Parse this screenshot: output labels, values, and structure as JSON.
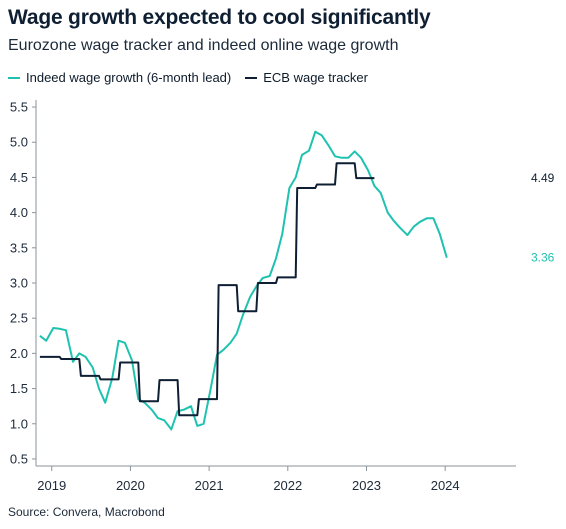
{
  "header": {
    "title": "Wage growth expected to cool significantly",
    "subtitle": "Eurozone wage tracker and indeed online wage growth"
  },
  "footer": {
    "source": "Source: Convera, Macrobond"
  },
  "colors": {
    "indeed": "#1fc2b0",
    "ecb": "#0f1f33"
  },
  "chart_data": {
    "type": "line",
    "title": "Wage growth expected to cool significantly",
    "subtitle": "Eurozone wage tracker and indeed online wage growth",
    "xlabel": "",
    "ylabel": "",
    "ylim": [
      0.4,
      5.6
    ],
    "yticks": [
      "0.5",
      "1.0",
      "1.5",
      "2.0",
      "2.5",
      "3.0",
      "3.5",
      "4.0",
      "4.5",
      "5.0",
      "5.5"
    ],
    "xlim": [
      2018.8,
      2024.9
    ],
    "xticks": [
      {
        "label": "2019",
        "value": 2019
      },
      {
        "label": "2020",
        "value": 2020
      },
      {
        "label": "2021",
        "value": 2021
      },
      {
        "label": "2022",
        "value": 2022
      },
      {
        "label": "2023",
        "value": 2023
      },
      {
        "label": "2024",
        "value": 2024
      }
    ],
    "grid": false,
    "legend_position": "top-left",
    "series": [
      {
        "name": "Indeed wage growth (6-month lead)",
        "end_label": "3.36",
        "points": [
          [
            2018.85,
            2.25
          ],
          [
            2018.93,
            2.18
          ],
          [
            2019.02,
            2.36
          ],
          [
            2019.1,
            2.35
          ],
          [
            2019.18,
            2.33
          ],
          [
            2019.27,
            1.88
          ],
          [
            2019.35,
            2.0
          ],
          [
            2019.43,
            1.95
          ],
          [
            2019.52,
            1.8
          ],
          [
            2019.6,
            1.5
          ],
          [
            2019.68,
            1.3
          ],
          [
            2019.77,
            1.65
          ],
          [
            2019.85,
            2.18
          ],
          [
            2019.93,
            2.15
          ],
          [
            2020.02,
            1.9
          ],
          [
            2020.1,
            1.35
          ],
          [
            2020.18,
            1.3
          ],
          [
            2020.27,
            1.2
          ],
          [
            2020.35,
            1.08
          ],
          [
            2020.43,
            1.05
          ],
          [
            2020.52,
            0.92
          ],
          [
            2020.6,
            1.18
          ],
          [
            2020.68,
            1.2
          ],
          [
            2020.77,
            1.25
          ],
          [
            2020.85,
            0.97
          ],
          [
            2020.93,
            1.0
          ],
          [
            2021.02,
            1.5
          ],
          [
            2021.1,
            1.98
          ],
          [
            2021.18,
            2.05
          ],
          [
            2021.27,
            2.15
          ],
          [
            2021.35,
            2.28
          ],
          [
            2021.43,
            2.55
          ],
          [
            2021.52,
            2.8
          ],
          [
            2021.6,
            2.95
          ],
          [
            2021.68,
            3.07
          ],
          [
            2021.77,
            3.1
          ],
          [
            2021.85,
            3.35
          ],
          [
            2021.93,
            3.7
          ],
          [
            2022.02,
            4.35
          ],
          [
            2022.1,
            4.5
          ],
          [
            2022.18,
            4.82
          ],
          [
            2022.27,
            4.88
          ],
          [
            2022.35,
            5.15
          ],
          [
            2022.43,
            5.1
          ],
          [
            2022.52,
            4.95
          ],
          [
            2022.6,
            4.8
          ],
          [
            2022.68,
            4.78
          ],
          [
            2022.77,
            4.78
          ],
          [
            2022.85,
            4.87
          ],
          [
            2022.93,
            4.78
          ],
          [
            2023.02,
            4.6
          ],
          [
            2023.1,
            4.38
          ],
          [
            2023.18,
            4.28
          ],
          [
            2023.27,
            4.0
          ],
          [
            2023.35,
            3.88
          ],
          [
            2023.43,
            3.78
          ],
          [
            2023.52,
            3.68
          ],
          [
            2023.6,
            3.8
          ],
          [
            2023.68,
            3.87
          ],
          [
            2023.77,
            3.92
          ],
          [
            2023.85,
            3.92
          ],
          [
            2023.93,
            3.7
          ],
          [
            2024.02,
            3.36
          ]
        ]
      },
      {
        "name": "ECB wage tracker",
        "end_label": "4.49",
        "points": [
          [
            2018.85,
            1.95
          ],
          [
            2019.1,
            1.95
          ],
          [
            2019.12,
            1.92
          ],
          [
            2019.35,
            1.92
          ],
          [
            2019.37,
            1.68
          ],
          [
            2019.6,
            1.68
          ],
          [
            2019.62,
            1.63
          ],
          [
            2019.85,
            1.63
          ],
          [
            2019.87,
            1.87
          ],
          [
            2020.1,
            1.87
          ],
          [
            2020.12,
            1.32
          ],
          [
            2020.35,
            1.32
          ],
          [
            2020.37,
            1.62
          ],
          [
            2020.6,
            1.62
          ],
          [
            2020.62,
            1.12
          ],
          [
            2020.85,
            1.12
          ],
          [
            2020.87,
            1.35
          ],
          [
            2021.1,
            1.35
          ],
          [
            2021.12,
            2.97
          ],
          [
            2021.35,
            2.97
          ],
          [
            2021.37,
            2.6
          ],
          [
            2021.6,
            2.6
          ],
          [
            2021.62,
            3.0
          ],
          [
            2021.85,
            3.0
          ],
          [
            2021.87,
            3.08
          ],
          [
            2022.1,
            3.08
          ],
          [
            2022.12,
            4.35
          ],
          [
            2022.35,
            4.35
          ],
          [
            2022.37,
            4.4
          ],
          [
            2022.6,
            4.4
          ],
          [
            2022.62,
            4.7
          ],
          [
            2022.85,
            4.7
          ],
          [
            2022.87,
            4.49
          ],
          [
            2023.1,
            4.49
          ]
        ]
      }
    ]
  }
}
